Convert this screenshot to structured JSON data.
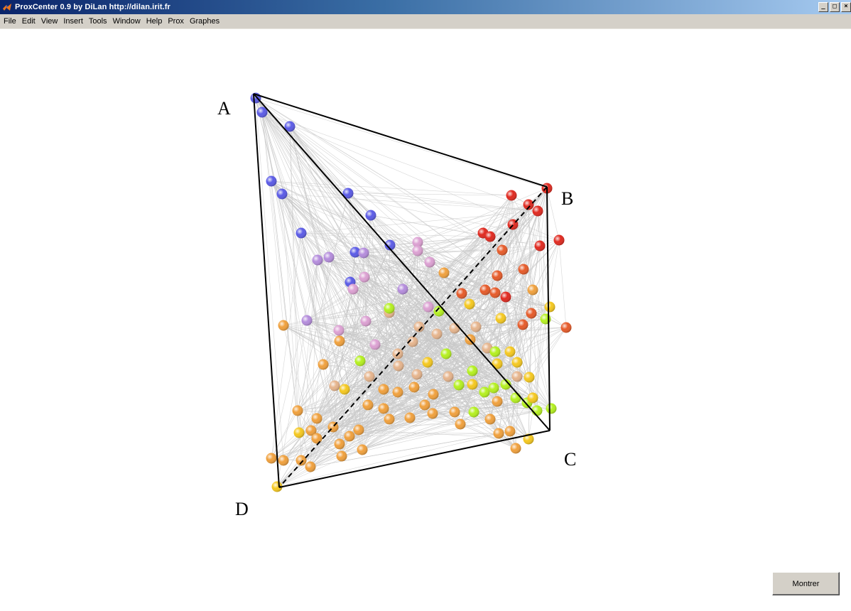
{
  "window": {
    "title": "ProxCenter 0.9 by DiLan http://dilan.irit.fr",
    "buttons": {
      "minimize": "_",
      "maximize": "□",
      "close": "×"
    }
  },
  "menu": {
    "items": [
      "File",
      "Edit",
      "View",
      "Insert",
      "Tools",
      "Window",
      "Help",
      "Prox",
      "Graphes"
    ]
  },
  "figure": {
    "vertex_labels": {
      "a": "A",
      "b": "B",
      "c": "C",
      "d": "D"
    },
    "node_colors": {
      "blue": "#5a5ae6",
      "lavender": "#b48cdc",
      "pink": "#dca0d2",
      "red": "#e0281e",
      "orange_red": "#e65a28",
      "orange": "#f0a03c",
      "yellow": "#f5c81e",
      "lime": "#b4f01e",
      "tan": "#e6b48c"
    },
    "edge_color": "#c8c8c8",
    "frame_color": "#000000"
  },
  "controls": {
    "show_button": "Montrer"
  }
}
